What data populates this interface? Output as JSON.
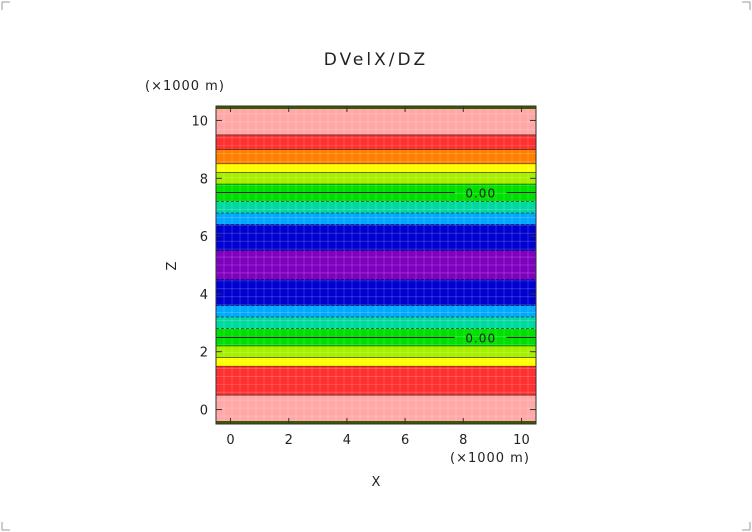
{
  "chart_data": {
    "type": "heatmap",
    "title": "DVelX/DZ",
    "xlabel": "X",
    "ylabel": "Z",
    "x_unit_label": "(×1000 m)",
    "y_unit_label": "(×1000 m)",
    "xlim": [
      -0.5,
      10.5
    ],
    "ylim": [
      -0.5,
      10.5
    ],
    "x_ticks": [
      0,
      2,
      4,
      6,
      8,
      10
    ],
    "y_ticks": [
      0,
      2,
      4,
      6,
      8,
      10
    ],
    "bands": [
      {
        "z0": -0.5,
        "z1": 0.5,
        "color": "#ffa8a8"
      },
      {
        "z0": 0.5,
        "z1": 1.5,
        "color": "#ff3030"
      },
      {
        "z0": 1.5,
        "z1": 1.8,
        "color": "#ffff00"
      },
      {
        "z0": 1.8,
        "z1": 2.2,
        "color": "#a6f000"
      },
      {
        "z0": 2.2,
        "z1": 2.8,
        "color": "#00e000"
      },
      {
        "z0": 2.8,
        "z1": 3.2,
        "color": "#00d8a0"
      },
      {
        "z0": 3.2,
        "z1": 3.6,
        "color": "#00a8ff"
      },
      {
        "z0": 3.6,
        "z1": 4.5,
        "color": "#0000d0"
      },
      {
        "z0": 4.5,
        "z1": 5.5,
        "color": "#8000c0"
      },
      {
        "z0": 5.5,
        "z1": 6.4,
        "color": "#0000d0"
      },
      {
        "z0": 6.4,
        "z1": 6.8,
        "color": "#00a8ff"
      },
      {
        "z0": 6.8,
        "z1": 7.2,
        "color": "#00d8a0"
      },
      {
        "z0": 7.2,
        "z1": 7.8,
        "color": "#00e000"
      },
      {
        "z0": 7.8,
        "z1": 8.2,
        "color": "#a6f000"
      },
      {
        "z0": 8.2,
        "z1": 8.5,
        "color": "#ffff00"
      },
      {
        "z0": 8.5,
        "z1": 9.0,
        "color": "#ff8000"
      },
      {
        "z0": 9.0,
        "z1": 9.5,
        "color": "#ff3030"
      },
      {
        "z0": 9.5,
        "z1": 10.5,
        "color": "#ffa8a8"
      }
    ],
    "contours": [
      {
        "z": 2.5,
        "label": "0.00"
      },
      {
        "z": 7.5,
        "label": "0.00"
      }
    ]
  }
}
